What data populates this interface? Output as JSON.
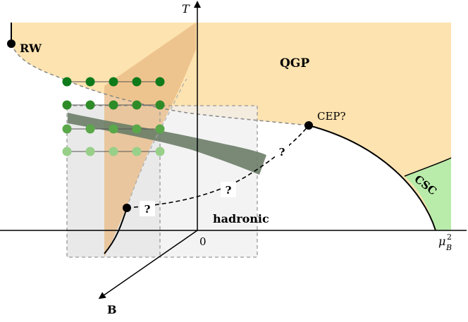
{
  "axes": {
    "y_label": "T",
    "x_label_main": "μ",
    "x_label_sub": "B",
    "x_label_sup": "2",
    "origin_label": "0",
    "depth_label": "B"
  },
  "regions": {
    "qgp": "QGP",
    "hadronic": "hadronic",
    "csc": "CSC",
    "rw": "RW",
    "cep": "CEP?"
  },
  "unknowns": [
    "?",
    "?",
    "?"
  ],
  "dot_rows": [
    {
      "color": "#0f7a1a"
    },
    {
      "color": "#2e8b28"
    },
    {
      "color": "#5aa84a"
    },
    {
      "color": "#98d08a"
    }
  ],
  "colors": {
    "qgp_fill": "#fde3b0",
    "csc_fill": "#b9ecaa",
    "band": "#6b7d68",
    "wedge": "#e8b983",
    "grid_box": "#efefef"
  }
}
